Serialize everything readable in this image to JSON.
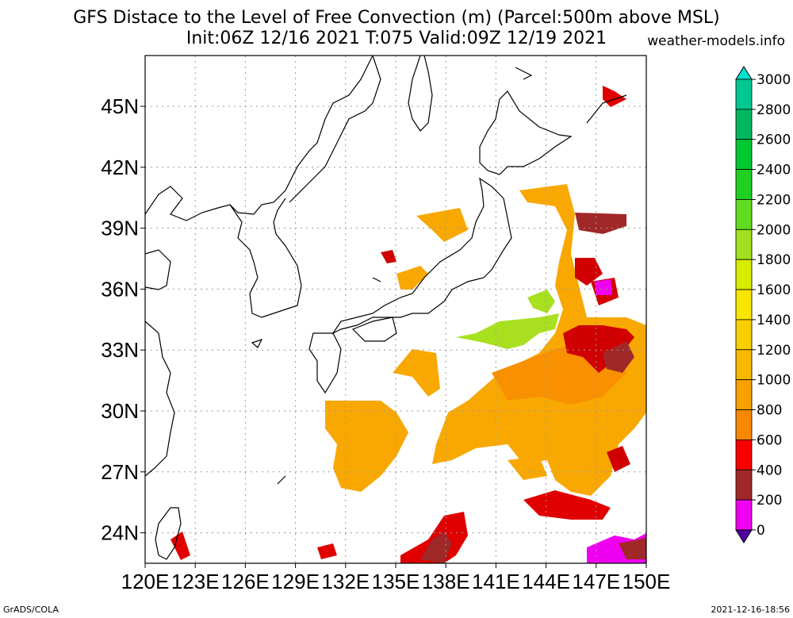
{
  "title": {
    "line1": "GFS Distace to the Level of Free Convection (m) (Parcel:500m above MSL)",
    "line2": "Init:06Z 12/16 2021 T:075 Valid:09Z 12/19 2021",
    "site": "weather-models.info"
  },
  "footer": {
    "left": "GrADS/COLA",
    "right": "2021-12-16-18:56"
  },
  "map": {
    "lat_labels": [
      "45N",
      "42N",
      "39N",
      "36N",
      "33N",
      "30N",
      "27N",
      "24N"
    ],
    "lon_labels": [
      "120E",
      "123E",
      "126E",
      "129E",
      "132E",
      "135E",
      "138E",
      "141E",
      "144E",
      "147E",
      "150E"
    ],
    "lon_range": [
      120,
      150
    ],
    "lat_range": [
      22.5,
      47.5
    ]
  },
  "colorbar": {
    "labels": [
      "3000",
      "2800",
      "2600",
      "2400",
      "2200",
      "2000",
      "1800",
      "1600",
      "1400",
      "1200",
      "1000",
      "800",
      "600",
      "400",
      "200",
      "0"
    ],
    "colors": [
      "#00e0d0",
      "#00c890",
      "#00b860",
      "#00c830",
      "#20d020",
      "#60dc20",
      "#a0e020",
      "#d8ec00",
      "#f8e600",
      "#f8d000",
      "#f8b800",
      "#f8a000",
      "#f88800",
      "#f80000",
      "#a02828",
      "#f000f0",
      "#5000a0"
    ]
  }
}
